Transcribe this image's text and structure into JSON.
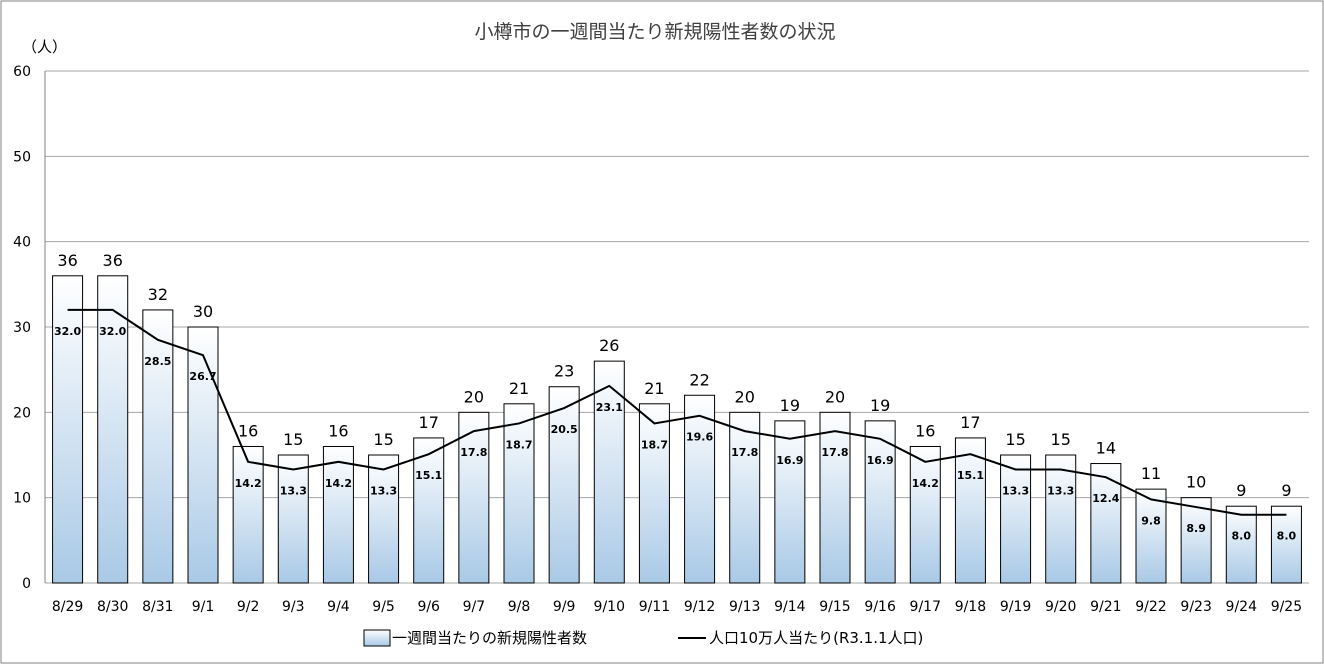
{
  "chart_data": {
    "type": "bar",
    "title": "小樽市の一週間当たり新規陽性者数の状況",
    "ylabel": "（人）",
    "xlabel": "",
    "ylim": [
      0,
      60
    ],
    "yticks": [
      "0",
      "10",
      "20",
      "30",
      "40",
      "50",
      "60"
    ],
    "grid": true,
    "legend_position": "bottom",
    "categories": [
      "8/29",
      "8/30",
      "8/31",
      "9/1",
      "9/2",
      "9/3",
      "9/4",
      "9/5",
      "9/6",
      "9/7",
      "9/8",
      "9/9",
      "9/10",
      "9/11",
      "9/12",
      "9/13",
      "9/14",
      "9/15",
      "9/16",
      "9/17",
      "9/18",
      "9/19",
      "9/20",
      "9/21",
      "9/22",
      "9/23",
      "9/24",
      "9/25"
    ],
    "series": [
      {
        "name": "一週間当たりの新規陽性者数",
        "type": "bar",
        "values": [
          36,
          36,
          32,
          30,
          16,
          15,
          16,
          15,
          17,
          20,
          21,
          23,
          26,
          21,
          22,
          20,
          19,
          20,
          19,
          16,
          17,
          15,
          15,
          14,
          11,
          10,
          9,
          9
        ],
        "labels": [
          "36",
          "36",
          "32",
          "30",
          "16",
          "15",
          "16",
          "15",
          "17",
          "20",
          "21",
          "23",
          "26",
          "21",
          "22",
          "20",
          "19",
          "20",
          "19",
          "16",
          "17",
          "15",
          "15",
          "14",
          "11",
          "10",
          "9",
          "9"
        ],
        "color_top": "#ffffff",
        "color_bottom": "#a9c9e6"
      },
      {
        "name": "人口10万人当たり(R3.1.1人口)",
        "type": "line",
        "values": [
          32.0,
          32.0,
          28.5,
          26.7,
          14.2,
          13.3,
          14.2,
          13.3,
          15.1,
          17.8,
          18.7,
          20.5,
          23.1,
          18.7,
          19.6,
          17.8,
          16.9,
          17.8,
          16.9,
          14.2,
          15.1,
          13.3,
          13.3,
          12.4,
          9.8,
          8.9,
          8.0,
          8.0
        ],
        "labels": [
          "32.0",
          "32.0",
          "28.5",
          "26.7",
          "14.2",
          "13.3",
          "14.2",
          "13.3",
          "15.1",
          "17.8",
          "18.7",
          "20.5",
          "23.1",
          "18.7",
          "19.6",
          "17.8",
          "16.9",
          "17.8",
          "16.9",
          "14.2",
          "15.1",
          "13.3",
          "13.3",
          "12.4",
          "9.8",
          "8.9",
          "8.0",
          "8.0"
        ],
        "color": "#000000"
      }
    ]
  }
}
